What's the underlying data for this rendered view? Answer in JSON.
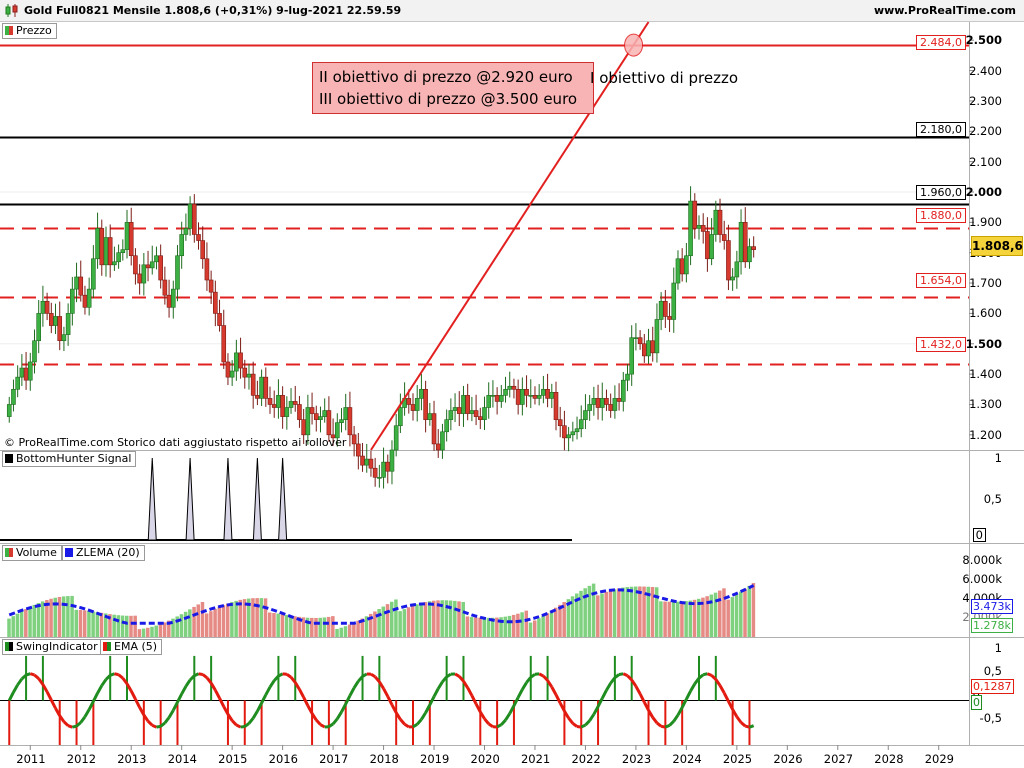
{
  "header": {
    "title": "Gold Full0821 Mensile 1.808,6 (+0,31%) 9-lug-2021 22.59.59",
    "site": "www.ProRealTime.com"
  },
  "panes": {
    "price_label": "Prezzo",
    "bottomhunter_label": "BottomHunter Signal",
    "volume_label": "Volume",
    "zlema_label": "ZLEMA (20)",
    "swing_label": "SwingIndicator",
    "ema_label": "EMA (5)"
  },
  "copyright": "© ProRealTime.com Storico dati aggiustato rispetto ai rollover",
  "annotation": {
    "line1": "II obiettivo di prezzo @2.920 euro",
    "line2": "III obiettivo di prezzo @3.500 euro",
    "overflow": "I obiettivo di prezzo"
  },
  "hlines": [
    {
      "label": "2.484,0",
      "value": 2484,
      "color": "#e32020",
      "style": "solid"
    },
    {
      "label": "2.180,0",
      "value": 2180,
      "color": "#000000",
      "style": "solid"
    },
    {
      "label": "1.960,0",
      "value": 1960,
      "color": "#000000",
      "style": "solid"
    },
    {
      "label": "1.880,0",
      "value": 1880,
      "color": "#e32020",
      "style": "dashed"
    },
    {
      "label": "1.654,0",
      "value": 1654,
      "color": "#e32020",
      "style": "dashed"
    },
    {
      "label": "1.432,0",
      "value": 1432,
      "color": "#e32020",
      "style": "dashed"
    }
  ],
  "price_axis_ticks": [
    "2.500",
    "2.400",
    "2.300",
    "2.200",
    "2.100",
    "2.000",
    "1.900",
    "1.800",
    "1.700",
    "1.600",
    "1.500",
    "1.400",
    "1.300",
    "1.200"
  ],
  "current_price": "1.808,6",
  "bh_axis_ticks": [
    "1",
    "0,5",
    "0"
  ],
  "vol_axis_ticks": [
    "8.000k",
    "6.000k",
    "4.000k",
    "2.000k"
  ],
  "vol_badges": {
    "zlema": "3.473k",
    "volume": "1.278k"
  },
  "swing_axis_ticks": [
    "1",
    "0,5",
    "0",
    "-0,5"
  ],
  "swing_badges": {
    "ema": "0,1287",
    "swing": "0"
  },
  "x_labels": [
    "2011",
    "2012",
    "2013",
    "2014",
    "2015",
    "2016",
    "2017",
    "2018",
    "2019",
    "2020",
    "2021",
    "2022",
    "2023",
    "2024",
    "2025",
    "2026",
    "2027",
    "2028",
    "2029"
  ],
  "colors": {
    "up": "#3cb043",
    "down": "#d63a2e",
    "zlema": "#1a1ae6",
    "trend": "#e32020",
    "ema": "#e31a0f",
    "swing": "#1e8c1e"
  },
  "chart_data": {
    "type": "candlestick",
    "title": "Gold Full0821 Mensile",
    "timeframe": "monthly",
    "x_range": [
      "2010-06",
      "2029-12"
    ],
    "ylim": [
      1150,
      2560
    ],
    "last_close": 1808.6,
    "change_pct": 0.31,
    "closes": [
      1300,
      1350,
      1390,
      1420,
      1380,
      1440,
      1510,
      1600,
      1640,
      1600,
      1560,
      1590,
      1510,
      1530,
      1600,
      1680,
      1720,
      1660,
      1620,
      1680,
      1780,
      1880,
      1760,
      1850,
      1760,
      1770,
      1800,
      1810,
      1900,
      1790,
      1730,
      1700,
      1760,
      1750,
      1770,
      1790,
      1710,
      1660,
      1620,
      1680,
      1790,
      1860,
      1880,
      1960,
      1860,
      1840,
      1780,
      1710,
      1670,
      1600,
      1560,
      1440,
      1390,
      1410,
      1470,
      1420,
      1390,
      1400,
      1330,
      1320,
      1390,
      1320,
      1300,
      1290,
      1330,
      1260,
      1290,
      1310,
      1300,
      1250,
      1200,
      1290,
      1270,
      1250,
      1260,
      1280,
      1200,
      1190,
      1240,
      1250,
      1290,
      1200,
      1170,
      1130,
      1100,
      1120,
      1090,
      1060,
      1060,
      1110,
      1080,
      1150,
      1230,
      1290,
      1320,
      1300,
      1280,
      1320,
      1350,
      1250,
      1270,
      1170,
      1150,
      1210,
      1250,
      1280,
      1290,
      1270,
      1330,
      1270,
      1280,
      1260,
      1250,
      1290,
      1330,
      1330,
      1310,
      1330,
      1350,
      1360,
      1350,
      1300,
      1350,
      1330,
      1330,
      1320,
      1330,
      1350,
      1320,
      1340,
      1250,
      1230,
      1190,
      1200,
      1210,
      1220,
      1250,
      1280,
      1300,
      1320,
      1290,
      1320,
      1300,
      1280,
      1320,
      1310,
      1380,
      1400,
      1520,
      1520,
      1500,
      1460,
      1510,
      1470,
      1580,
      1640,
      1590,
      1580,
      1700,
      1780,
      1730,
      1790,
      1970,
      1880,
      1890,
      1870,
      1780,
      1860,
      1940,
      1860,
      1840,
      1710,
      1720,
      1770,
      1900,
      1770,
      1820,
      1810
    ],
    "trendline": {
      "from": {
        "x": "2017-10",
        "y": 1150
      },
      "to": {
        "x": "2023-04",
        "y": 2560
      }
    },
    "bottomhunter_signal": {
      "dates": [
        "2013-06",
        "2014-03",
        "2014-12",
        "2015-07",
        "2016-01"
      ],
      "value": 1
    },
    "volume": {
      "ylim": [
        0,
        10000
      ]
    },
    "swing_indicator": {
      "ylim": [
        -1,
        1.2
      ]
    }
  }
}
